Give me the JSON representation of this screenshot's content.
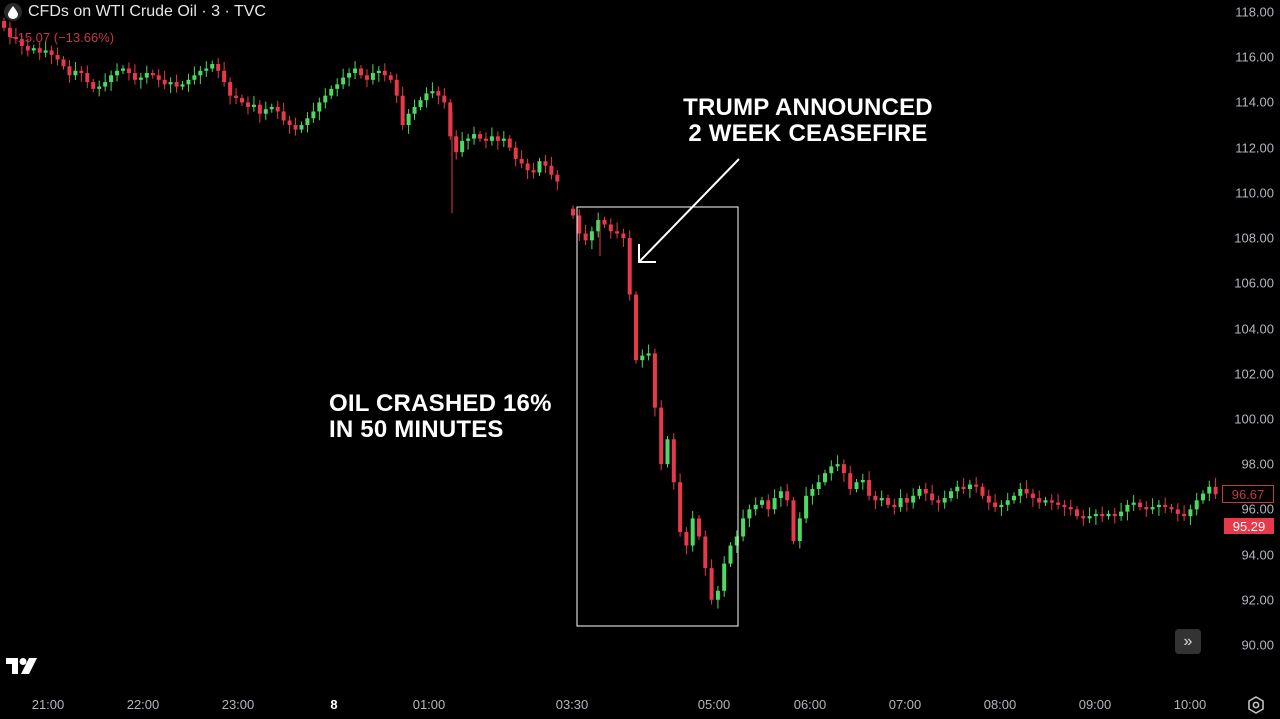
{
  "header": {
    "symbol_title": "CFDs on WTI Crude Oil · 3 · TVC",
    "change_text": "−15.07 (−13.66%)",
    "icon": "oil-drop-icon"
  },
  "colors": {
    "background": "#000000",
    "up": "#4cd964",
    "down": "#e8394a",
    "annotation": "#ffffff",
    "axis_text": "#b2b5be"
  },
  "annotations": {
    "top_text_line1": "TRUMP ANNOUNCED",
    "top_text_line2": "2 WEEK CEASEFIRE",
    "left_text_line1": "OIL CRASHED 16%",
    "left_text_line2": "IN 50 MINUTES"
  },
  "price_badges": {
    "outlined": "96.67",
    "filled": "95.29"
  },
  "controls": {
    "scroll_right": "»",
    "logo": "tradingview-logo",
    "settings": "settings-icon"
  },
  "chart_data": {
    "type": "candlestick",
    "title": "CFDs on WTI Crude Oil · 3 · TVC",
    "interval_minutes": 3,
    "change": "−15.07 (−13.66%)",
    "y_ticks": [
      "118.00",
      "116.00",
      "114.00",
      "112.00",
      "110.00",
      "108.00",
      "106.00",
      "104.00",
      "102.00",
      "100.00",
      "98.00",
      "96.00",
      "94.00",
      "92.00",
      "90.00"
    ],
    "x_ticks": [
      "21:00",
      "22:00",
      "23:00",
      "8",
      "01:00",
      "03:30",
      "05:00",
      "06:00",
      "07:00",
      "08:00",
      "09:00",
      "10:00"
    ],
    "ylim": [
      89.5,
      118.5
    ],
    "last_price": 96.67,
    "secondary_price": 95.29,
    "approx_closes": {
      "segment_1_start": "20:45",
      "segment_1": [
        117.3,
        116.9,
        116.8,
        116.5,
        116.3,
        116.4,
        116.2,
        116.3,
        116.1,
        115.9,
        115.6,
        115.2,
        115.4,
        115.3,
        114.9,
        114.6,
        114.7,
        114.9,
        115.2,
        115.4,
        115.5,
        115.3,
        115.0,
        115.1,
        115.3,
        115.2,
        115.0,
        114.8,
        114.9,
        114.7,
        114.8,
        115.0,
        115.2,
        115.4,
        115.5,
        115.7,
        115.4,
        114.9,
        114.3,
        114.2,
        114.0,
        113.8,
        113.9,
        113.5,
        113.7,
        113.8,
        113.6,
        113.2,
        113.0,
        112.8,
        113.0,
        113.3,
        113.6,
        114.0,
        114.3,
        114.6,
        114.8,
        115.1,
        115.3,
        115.5,
        115.2,
        115.0,
        115.3,
        115.4,
        115.2,
        115.0,
        114.3,
        113.0,
        113.5,
        113.8,
        114.1,
        114.4,
        114.5,
        114.3,
        114.0,
        112.5,
        111.8,
        112.3,
        112.4,
        112.6,
        112.4,
        112.3,
        112.5,
        112.3,
        112.4,
        112.0,
        111.5,
        111.3,
        111.0,
        110.9,
        111.4,
        111.2,
        110.8,
        110.5
      ],
      "gap_note": "session gap ~03:20",
      "segment_2": [
        109.0,
        108.2,
        107.9,
        108.3,
        108.8,
        108.6,
        108.3,
        108.2,
        108.0,
        105.5,
        102.6,
        102.8,
        102.9,
        100.5,
        98.0,
        99.1,
        97.2,
        95.0,
        94.4,
        95.6,
        94.8,
        93.4,
        92.0,
        92.4,
        93.6,
        94.4,
        94.8,
        95.6,
        96.0,
        96.2,
        96.4,
        96.0,
        96.5,
        96.8,
        96.4,
        94.6,
        95.6,
        96.6,
        96.9,
        97.2,
        97.6,
        97.9,
        98.0,
        97.6,
        96.9,
        97.2,
        97.3,
        96.6,
        96.4,
        96.5,
        96.2,
        96.1,
        96.5,
        96.3,
        96.6,
        96.9,
        96.7,
        96.4,
        96.3,
        96.5,
        96.8,
        97.0,
        96.9,
        97.1,
        97.0,
        96.6,
        96.3,
        96.1,
        96.2,
        96.4,
        96.6,
        96.9,
        96.7,
        96.5,
        96.3,
        96.4,
        96.3,
        96.2,
        96.1,
        96.0,
        95.7,
        95.6,
        95.7,
        95.8,
        95.7,
        95.8,
        95.7,
        95.9,
        96.2,
        96.3,
        96.1,
        96.0,
        96.1,
        96.2,
        96.1,
        96.0,
        95.8,
        95.7,
        96.0,
        96.4,
        96.7,
        97.0,
        96.67
      ]
    }
  }
}
